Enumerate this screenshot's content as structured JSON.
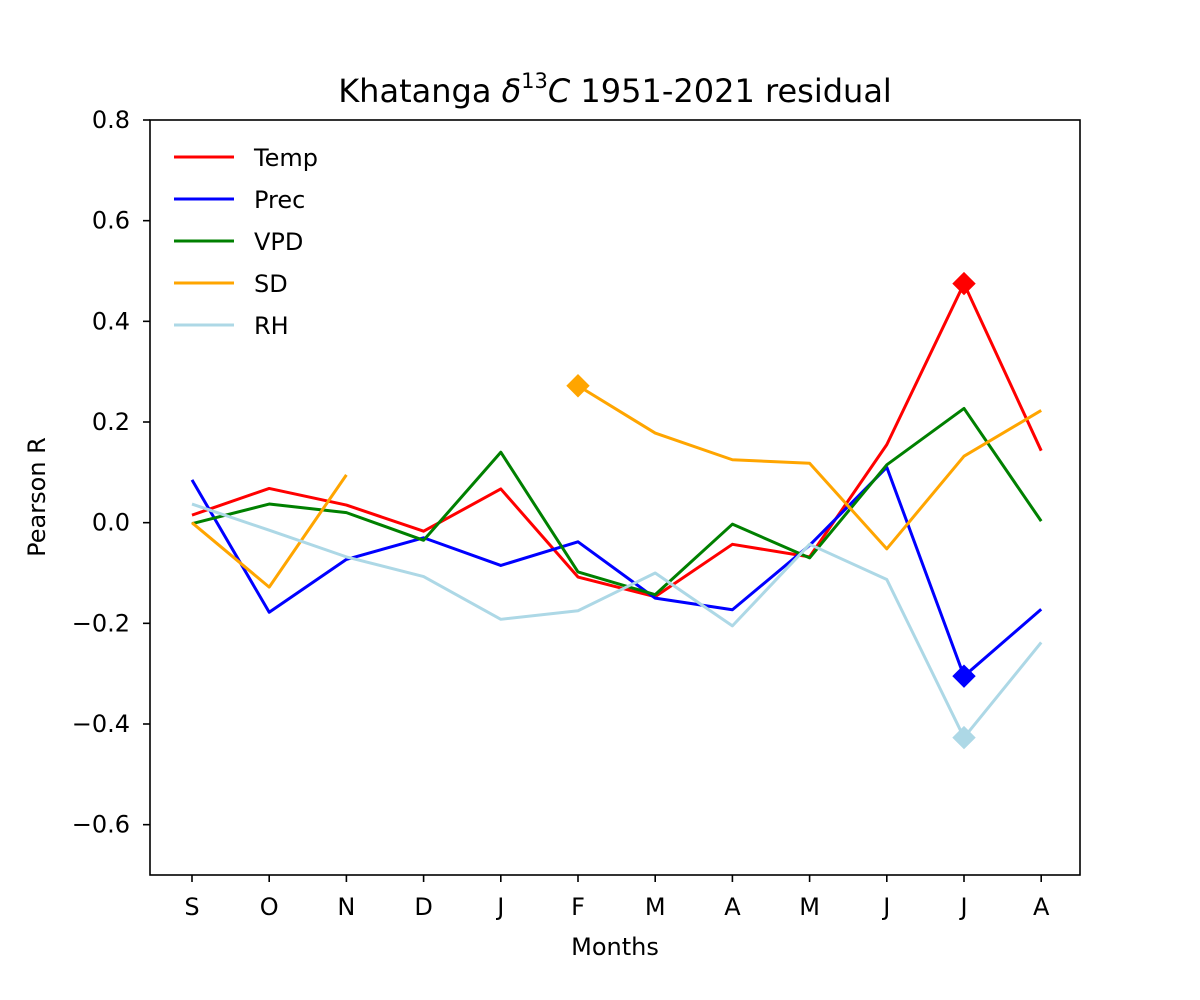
{
  "chart_data": {
    "type": "line",
    "title": {
      "prefix": "Khatanga ",
      "delta": "δ",
      "sup": "13",
      "letter": "C",
      "suffix": " 1951-2021 residual"
    },
    "xlabel": "Months",
    "ylabel": "Pearson R",
    "categories": [
      "S",
      "O",
      "N",
      "D",
      "J",
      "F",
      "M",
      "A",
      "M",
      "J",
      "J",
      "A"
    ],
    "ylim": [
      -0.7,
      0.8
    ],
    "yticks": [
      -0.6,
      -0.4,
      -0.2,
      0.0,
      0.2,
      0.4,
      0.6,
      0.8
    ],
    "ytick_labels": [
      "−0.6",
      "−0.4",
      "−0.2",
      "0.0",
      "0.2",
      "0.4",
      "0.6",
      "0.8"
    ],
    "grid": false,
    "legend_position": "top-left",
    "series": [
      {
        "name": "Temp",
        "color": "#ff0000",
        "values": [
          0.015,
          0.068,
          0.035,
          -0.017,
          0.067,
          -0.108,
          -0.147,
          -0.043,
          -0.068,
          0.155,
          0.475,
          0.143
        ],
        "markers": [
          10
        ]
      },
      {
        "name": "Prec",
        "color": "#0000ff",
        "values": [
          0.085,
          -0.178,
          -0.073,
          -0.03,
          -0.085,
          -0.038,
          -0.15,
          -0.173,
          -0.045,
          0.11,
          -0.305,
          -0.172
        ],
        "markers": [
          10
        ]
      },
      {
        "name": "VPD",
        "color": "#008000",
        "values": [
          -0.002,
          0.037,
          0.02,
          -0.035,
          0.14,
          -0.098,
          -0.143,
          -0.003,
          -0.07,
          0.115,
          0.227,
          0.003
        ],
        "markers": []
      },
      {
        "name": "SD",
        "color": "#ffa500",
        "values": [
          0.0,
          -0.128,
          0.095,
          null,
          null,
          0.272,
          0.178,
          0.125,
          0.118,
          -0.052,
          0.132,
          0.223
        ],
        "markers": [
          5
        ]
      },
      {
        "name": "RH",
        "color": "#add8e6",
        "values": [
          0.037,
          -0.015,
          -0.068,
          -0.107,
          -0.192,
          -0.175,
          -0.1,
          -0.205,
          -0.043,
          -0.113,
          -0.427,
          -0.238
        ],
        "markers": [
          10
        ]
      }
    ]
  }
}
